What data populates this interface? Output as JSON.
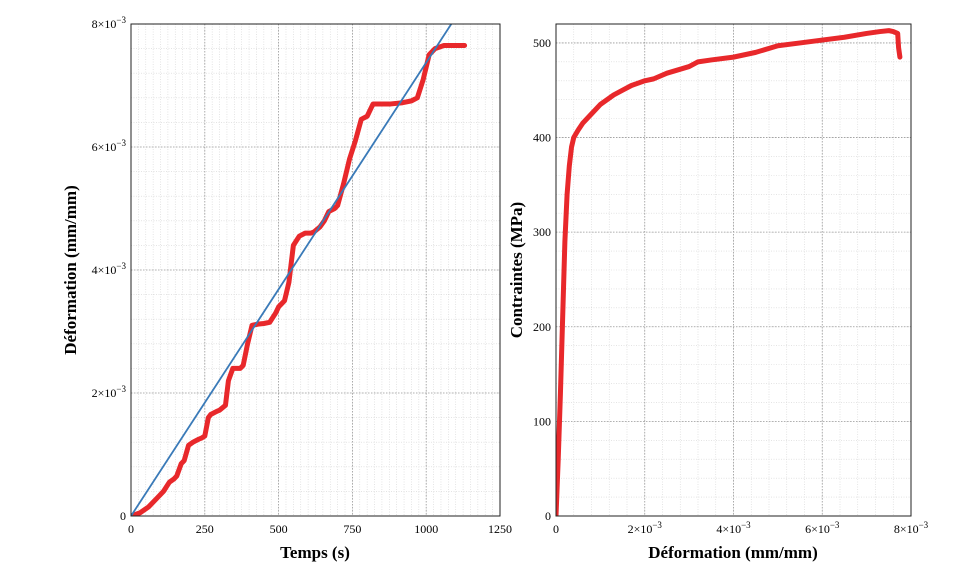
{
  "chart_data": [
    {
      "type": "line",
      "title": "",
      "xlabel": "Temps (s)",
      "ylabel": "Déformation (mm/mm)",
      "xlim": [
        0,
        1250
      ],
      "ylim": [
        0,
        0.008
      ],
      "xticks": [
        "0",
        "250",
        "500",
        "750",
        "1000",
        "1250"
      ],
      "yticks": [
        "0",
        "2×10",
        "4×10",
        "6×10",
        "8×10"
      ],
      "ytick_exponent": "−3",
      "grid": true,
      "series": [
        {
          "color": "#e8282b",
          "style": "thick",
          "x": [
            0,
            30,
            60,
            90,
            110,
            130,
            145,
            155,
            170,
            180,
            195,
            210,
            230,
            240,
            250,
            262,
            270,
            290,
            300,
            320,
            330,
            345,
            370,
            380,
            395,
            410,
            430,
            450,
            470,
            490,
            500,
            520,
            535,
            550,
            570,
            590,
            610,
            620,
            640,
            655,
            670,
            690,
            700,
            720,
            740,
            760,
            780,
            800,
            820,
            850,
            880,
            920,
            950,
            970,
            990,
            1010,
            1030,
            1060,
            1100,
            1130
          ],
          "y": [
            0,
            5e-05,
            0.00015,
            0.0003,
            0.0004,
            0.00055,
            0.0006,
            0.00065,
            0.00085,
            0.0009,
            0.00115,
            0.0012,
            0.00125,
            0.00127,
            0.0013,
            0.0016,
            0.00165,
            0.0017,
            0.00172,
            0.0018,
            0.0022,
            0.0024,
            0.0024,
            0.00245,
            0.0028,
            0.0031,
            0.00312,
            0.00313,
            0.00315,
            0.0033,
            0.0034,
            0.0035,
            0.0038,
            0.0044,
            0.00455,
            0.0046,
            0.0046,
            0.00462,
            0.0047,
            0.0048,
            0.00495,
            0.005,
            0.00505,
            0.0054,
            0.0058,
            0.0061,
            0.00645,
            0.0065,
            0.0067,
            0.0067,
            0.0067,
            0.00672,
            0.00675,
            0.0068,
            0.0071,
            0.0075,
            0.0076,
            0.00765,
            0.00765,
            0.00765
          ]
        },
        {
          "color": "#3a7ab8",
          "style": "thin",
          "x": [
            0,
            1085
          ],
          "y": [
            0,
            0.008
          ]
        }
      ]
    },
    {
      "type": "line",
      "title": "",
      "xlabel": "Déformation (mm/mm)",
      "ylabel": "Contraintes (MPa)",
      "xlim": [
        0,
        0.008
      ],
      "ylim": [
        0,
        520
      ],
      "xticks": [
        "0",
        "2×10",
        "4×10",
        "6×10",
        "8×10"
      ],
      "xtick_exponent": "−3",
      "yticks": [
        "0",
        "100",
        "200",
        "300",
        "400",
        "500"
      ],
      "grid": true,
      "series": [
        {
          "color": "#e8282b",
          "style": "thick",
          "x": [
            0,
            5e-05,
            0.0001,
            0.00015,
            0.0002,
            0.00025,
            0.0003,
            0.00035,
            0.0004,
            0.0005,
            0.0006,
            0.0008,
            0.001,
            0.0013,
            0.0015,
            0.0017,
            0.002,
            0.0022,
            0.0025,
            0.003,
            0.0032,
            0.0035,
            0.004,
            0.0045,
            0.005,
            0.0055,
            0.006,
            0.0065,
            0.007,
            0.0073,
            0.0075,
            0.0076,
            0.0077,
            0.00772,
            0.00775
          ],
          "y": [
            0,
            60,
            130,
            210,
            290,
            340,
            370,
            390,
            400,
            408,
            415,
            425,
            435,
            445,
            450,
            455,
            460,
            462,
            468,
            475,
            480,
            482,
            485,
            490,
            497,
            500,
            503,
            506,
            510,
            512,
            513,
            512,
            510,
            495,
            485
          ]
        }
      ]
    }
  ]
}
